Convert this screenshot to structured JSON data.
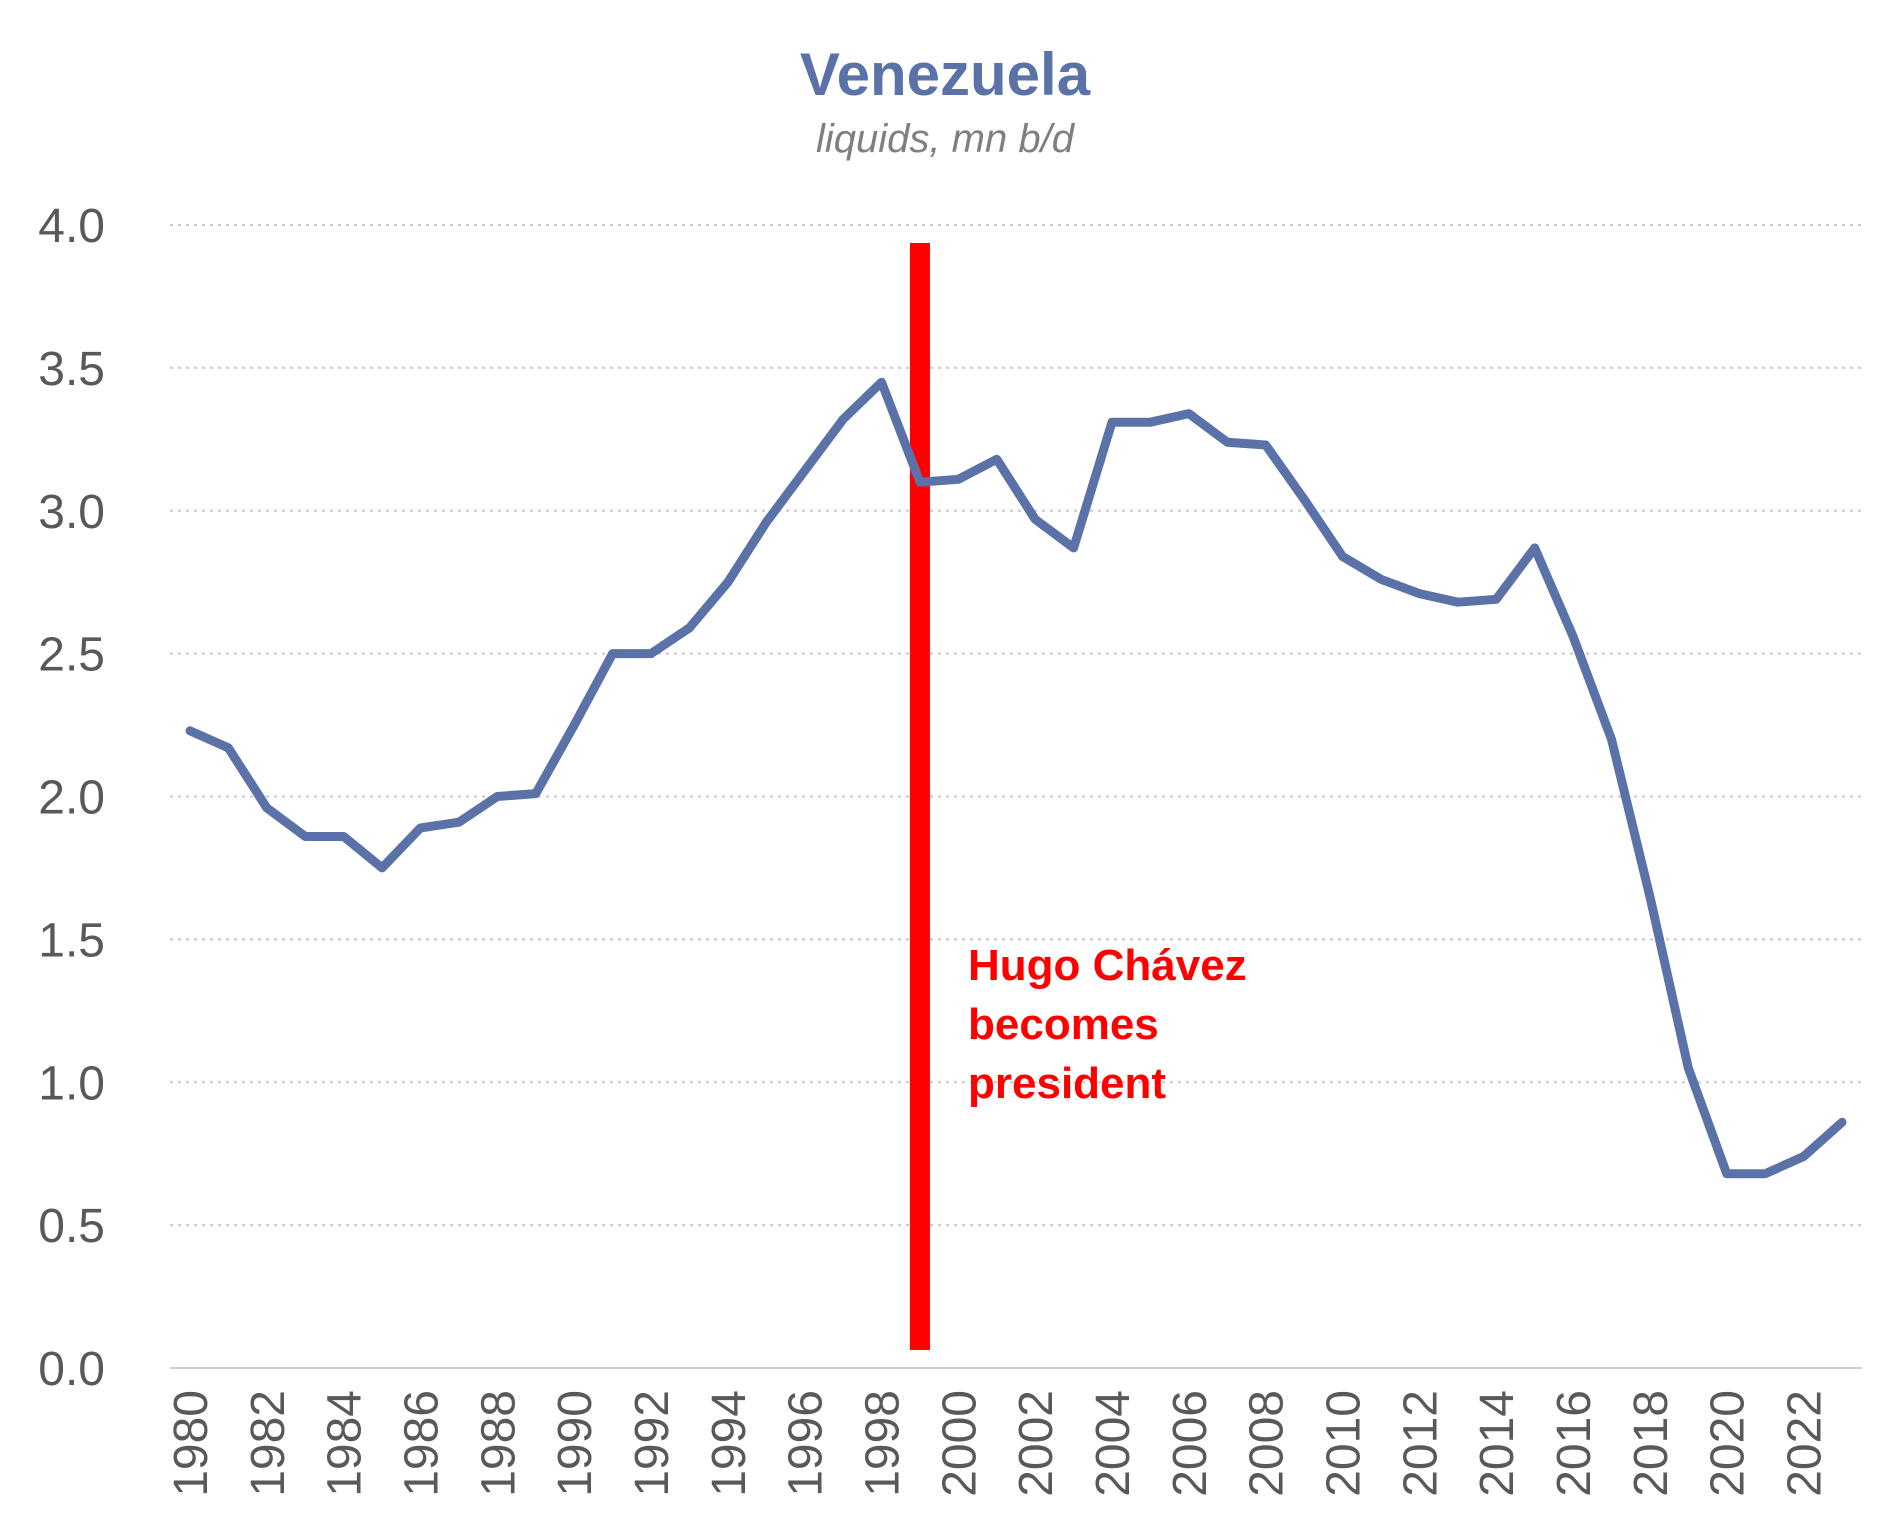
{
  "chart_data": {
    "type": "line",
    "title": "Venezuela",
    "subtitle": "liquids, mn b/d",
    "xlabel": "",
    "ylabel": "",
    "x": [
      1980,
      1981,
      1982,
      1983,
      1984,
      1985,
      1986,
      1987,
      1988,
      1989,
      1990,
      1991,
      1992,
      1993,
      1994,
      1995,
      1996,
      1997,
      1998,
      1999,
      2000,
      2001,
      2002,
      2003,
      2004,
      2005,
      2006,
      2007,
      2008,
      2009,
      2010,
      2011,
      2012,
      2013,
      2014,
      2015,
      2016,
      2017,
      2018,
      2019,
      2020,
      2021,
      2022,
      2023
    ],
    "x_tick_labels": [
      "1980",
      "1982",
      "1984",
      "1986",
      "1988",
      "1990",
      "1992",
      "1994",
      "1996",
      "1998",
      "2000",
      "2002",
      "2004",
      "2006",
      "2008",
      "2010",
      "2012",
      "2014",
      "2016",
      "2018",
      "2020",
      "2022"
    ],
    "y_tick_labels": [
      "0.0",
      "0.5",
      "1.0",
      "1.5",
      "2.0",
      "2.5",
      "3.0",
      "3.5",
      "4.0"
    ],
    "ylim": [
      0,
      4
    ],
    "y_ticks": [
      0,
      0.5,
      1.0,
      1.5,
      2.0,
      2.5,
      3.0,
      3.5,
      4.0
    ],
    "grid": true,
    "legend": "none",
    "series": [
      {
        "values": [
          2.23,
          2.17,
          1.96,
          1.86,
          1.86,
          1.75,
          1.89,
          1.91,
          2.0,
          2.01,
          2.25,
          2.5,
          2.5,
          2.59,
          2.75,
          2.96,
          3.14,
          3.32,
          3.45,
          3.1,
          3.11,
          3.18,
          2.97,
          2.87,
          3.31,
          3.31,
          3.34,
          3.24,
          3.23,
          3.04,
          2.84,
          2.76,
          2.71,
          2.68,
          2.69,
          2.87,
          2.56,
          2.2,
          1.65,
          1.05,
          0.68,
          0.68,
          0.74,
          0.86
        ],
        "color": "#5b72a8"
      }
    ],
    "annotation": {
      "x": 1999,
      "color": "#ff0000",
      "text_lines": [
        "Hugo Chávez",
        "becomes",
        "president"
      ]
    },
    "colors": {
      "title": "#5b72a8",
      "subtitle": "#7f7f7f",
      "tick_labels": "#595959",
      "gridline": "#c8c8c8",
      "axis_line": "#d0d0d0"
    }
  }
}
